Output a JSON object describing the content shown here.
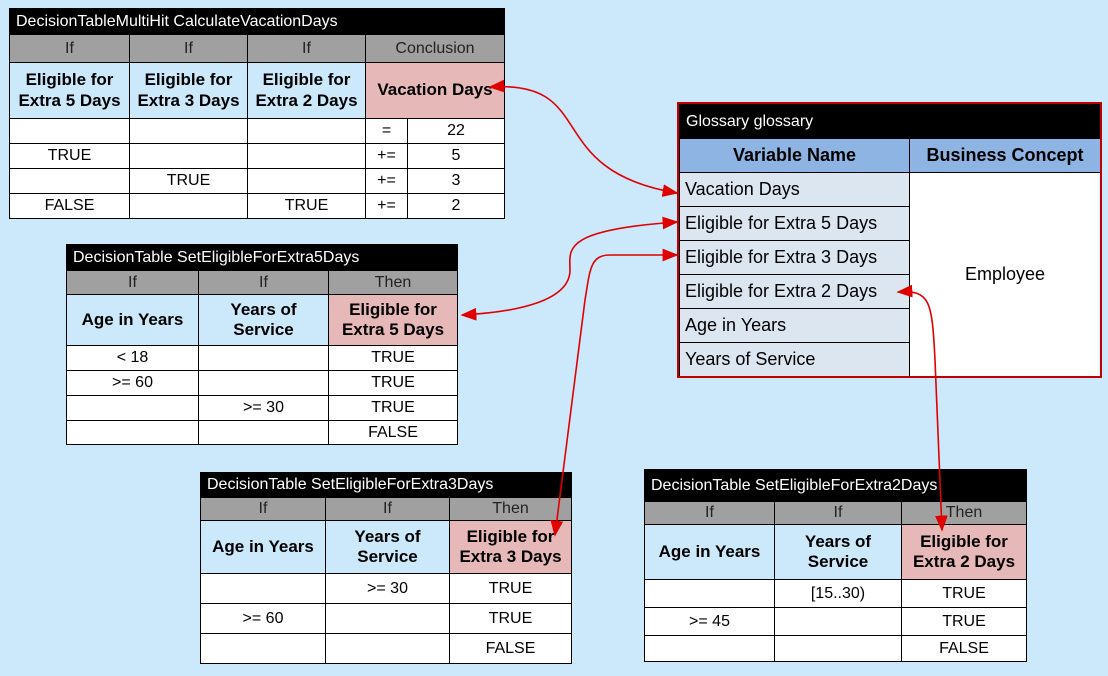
{
  "tables": [
    {
      "title": "DecisionTableMultiHit CalculateVacationDays",
      "kinds": [
        "If",
        "If",
        "If",
        "Conclusion"
      ],
      "headers": [
        "Eligible for Extra 5 Days",
        "Eligible for Extra 3 Days",
        "Eligible for Extra 2 Days",
        "Vacation Days"
      ],
      "rows": [
        [
          null,
          null,
          null,
          "=",
          "22"
        ],
        [
          "TRUE",
          null,
          null,
          "+=",
          "5"
        ],
        [
          null,
          "TRUE",
          null,
          "+=",
          "3"
        ],
        [
          "FALSE",
          null,
          "TRUE",
          "+=",
          "2"
        ]
      ]
    },
    {
      "title": "DecisionTable SetEligibleForExtra5Days",
      "kinds": [
        "If",
        "If",
        "Then"
      ],
      "headers": [
        "Age in Years",
        "Years of Service",
        "Eligible for Extra 5 Days"
      ],
      "rows": [
        [
          "< 18",
          null,
          "TRUE"
        ],
        [
          ">= 60",
          null,
          "TRUE"
        ],
        [
          null,
          ">= 30",
          "TRUE"
        ],
        [
          null,
          null,
          "FALSE"
        ]
      ]
    },
    {
      "title": "DecisionTable SetEligibleForExtra3Days",
      "kinds": [
        "If",
        "If",
        "Then"
      ],
      "headers": [
        "Age in Years",
        "Years of Service",
        "Eligible for Extra 3 Days"
      ],
      "rows": [
        [
          null,
          ">= 30",
          "TRUE"
        ],
        [
          ">= 60",
          null,
          "TRUE"
        ],
        [
          null,
          null,
          "FALSE"
        ]
      ]
    },
    {
      "title": "DecisionTable SetEligibleForExtra2Days",
      "kinds": [
        "If",
        "If",
        "Then"
      ],
      "headers": [
        "Age in Years",
        "Years of Service",
        "Eligible for Extra 2 Days"
      ],
      "rows": [
        [
          null,
          "[15..30)",
          "TRUE"
        ],
        [
          ">= 45",
          null,
          "TRUE"
        ],
        [
          null,
          null,
          "FALSE"
        ]
      ]
    }
  ],
  "glossary": {
    "title": "Glossary glossary",
    "headers": [
      "Variable Name",
      "Business Concept"
    ],
    "variables": [
      "Vacation Days",
      "Eligible for Extra 5 Days",
      "Eligible for Extra 3 Days",
      "Eligible for Extra 2 Days",
      "Age in Years",
      "Years of Service"
    ],
    "concept": "Employee"
  }
}
